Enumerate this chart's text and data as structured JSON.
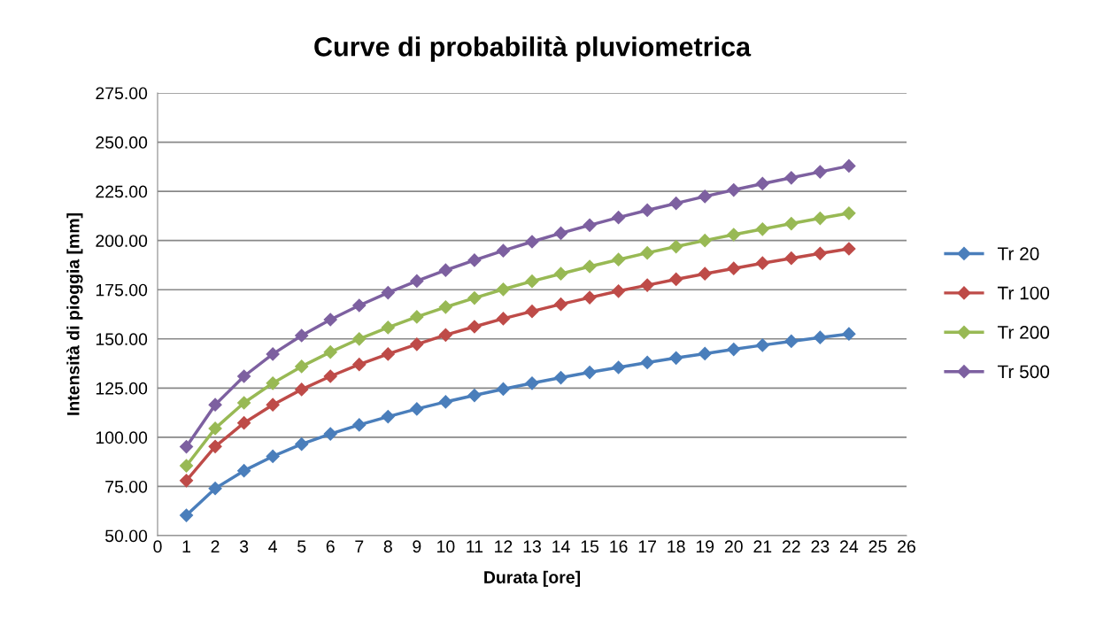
{
  "chart_data": {
    "type": "line",
    "title": "Curve di probabilità pluviometrica",
    "xlabel": "Durata [ore]",
    "ylabel": "Intensità di pioggia [mm]",
    "x": [
      1,
      2,
      3,
      4,
      5,
      6,
      7,
      8,
      9,
      10,
      11,
      12,
      13,
      14,
      15,
      16,
      17,
      18,
      19,
      20,
      21,
      22,
      23,
      24
    ],
    "series": [
      {
        "name": "Tr 20",
        "color": "#4a7ebb",
        "values": [
          60.3,
          74,
          83,
          90.3,
          96.5,
          101.7,
          106.3,
          110.5,
          114.4,
          118,
          121.3,
          124.5,
          127.5,
          130.3,
          133,
          135.5,
          138,
          140.3,
          142.5,
          144.7,
          146.8,
          148.8,
          150.7,
          152.5
        ]
      },
      {
        "name": "Tr 100",
        "color": "#be4b48",
        "values": [
          78,
          95.3,
          107.3,
          116.5,
          124.3,
          131,
          137,
          142.3,
          147.3,
          152,
          156.2,
          160.3,
          164,
          167.6,
          171,
          174.3,
          177.3,
          180.3,
          183.1,
          185.8,
          188.5,
          191,
          193.4,
          195.8
        ]
      },
      {
        "name": "Tr 200",
        "color": "#98b954",
        "values": [
          85.5,
          104.5,
          117.5,
          127.5,
          136,
          143.3,
          150,
          155.8,
          161.2,
          166.2,
          170.8,
          175.2,
          179.3,
          183.1,
          186.8,
          190.3,
          193.7,
          196.9,
          200,
          203,
          205.8,
          208.6,
          211.3,
          213.9
        ]
      },
      {
        "name": "Tr 500",
        "color": "#7d60a0",
        "values": [
          95.2,
          116.5,
          131,
          142.3,
          151.7,
          159.8,
          167,
          173.5,
          179.4,
          184.9,
          190,
          194.8,
          199.4,
          203.7,
          207.8,
          211.7,
          215.4,
          218.9,
          222.4,
          225.7,
          228.9,
          231.9,
          234.9,
          237.9
        ]
      }
    ],
    "xlim": [
      0,
      26
    ],
    "xticks": [
      0,
      1,
      2,
      3,
      4,
      5,
      6,
      7,
      8,
      9,
      10,
      11,
      12,
      13,
      14,
      15,
      16,
      17,
      18,
      19,
      20,
      21,
      22,
      23,
      24,
      25,
      26
    ],
    "ylim": [
      50,
      275
    ],
    "yticks": [
      {
        "value": 50,
        "label": "50.00"
      },
      {
        "value": 75,
        "label": "75.00"
      },
      {
        "value": 100,
        "label": "100.00"
      },
      {
        "value": 125,
        "label": "125.00"
      },
      {
        "value": 150,
        "label": "150.00"
      },
      {
        "value": 175,
        "label": "175.00"
      },
      {
        "value": 200,
        "label": "200.00"
      },
      {
        "value": 225,
        "label": "225.00"
      },
      {
        "value": 250,
        "label": "250.00"
      },
      {
        "value": 275,
        "label": "275.00"
      }
    ],
    "grid": "y",
    "legend": "right",
    "marker": "diamond",
    "line_style": "solid"
  }
}
